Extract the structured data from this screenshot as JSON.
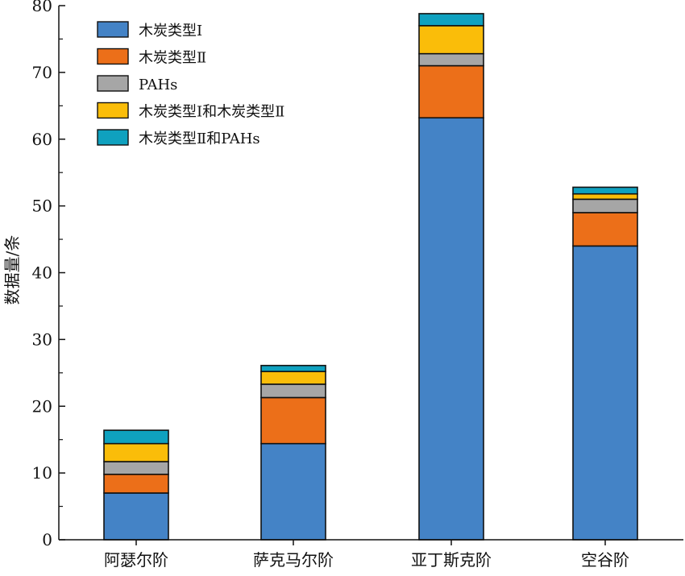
{
  "chart_data": {
    "type": "bar",
    "stacked": true,
    "categories": [
      "阿瑟尔阶",
      "萨克马尔阶",
      "亚丁斯克阶",
      "空谷阶"
    ],
    "series": [
      {
        "name": "木炭类型Ⅰ",
        "color": "#4483C6",
        "values": [
          7,
          14.4,
          63.2,
          44
        ]
      },
      {
        "name": "木炭类型Ⅱ",
        "color": "#EC6F19",
        "values": [
          2.8,
          6.9,
          7.8,
          5
        ]
      },
      {
        "name": "PAHs",
        "color": "#A6A6A6",
        "values": [
          1.9,
          2,
          1.8,
          2
        ]
      },
      {
        "name": "木炭类型Ⅰ和木炭类型Ⅱ",
        "color": "#FABD09",
        "values": [
          2.7,
          1.9,
          4.2,
          0.8
        ]
      },
      {
        "name": "木炭类型Ⅱ和PAHs",
        "color": "#0FA1BF",
        "values": [
          2,
          0.9,
          1.8,
          1
        ]
      }
    ],
    "ylabel": "数据量/条",
    "xlabel": "",
    "ylim": [
      0,
      80
    ],
    "yticks": [
      0,
      10,
      20,
      30,
      40,
      50,
      60,
      70,
      80
    ],
    "legend_position": "top-left",
    "grid": false
  }
}
